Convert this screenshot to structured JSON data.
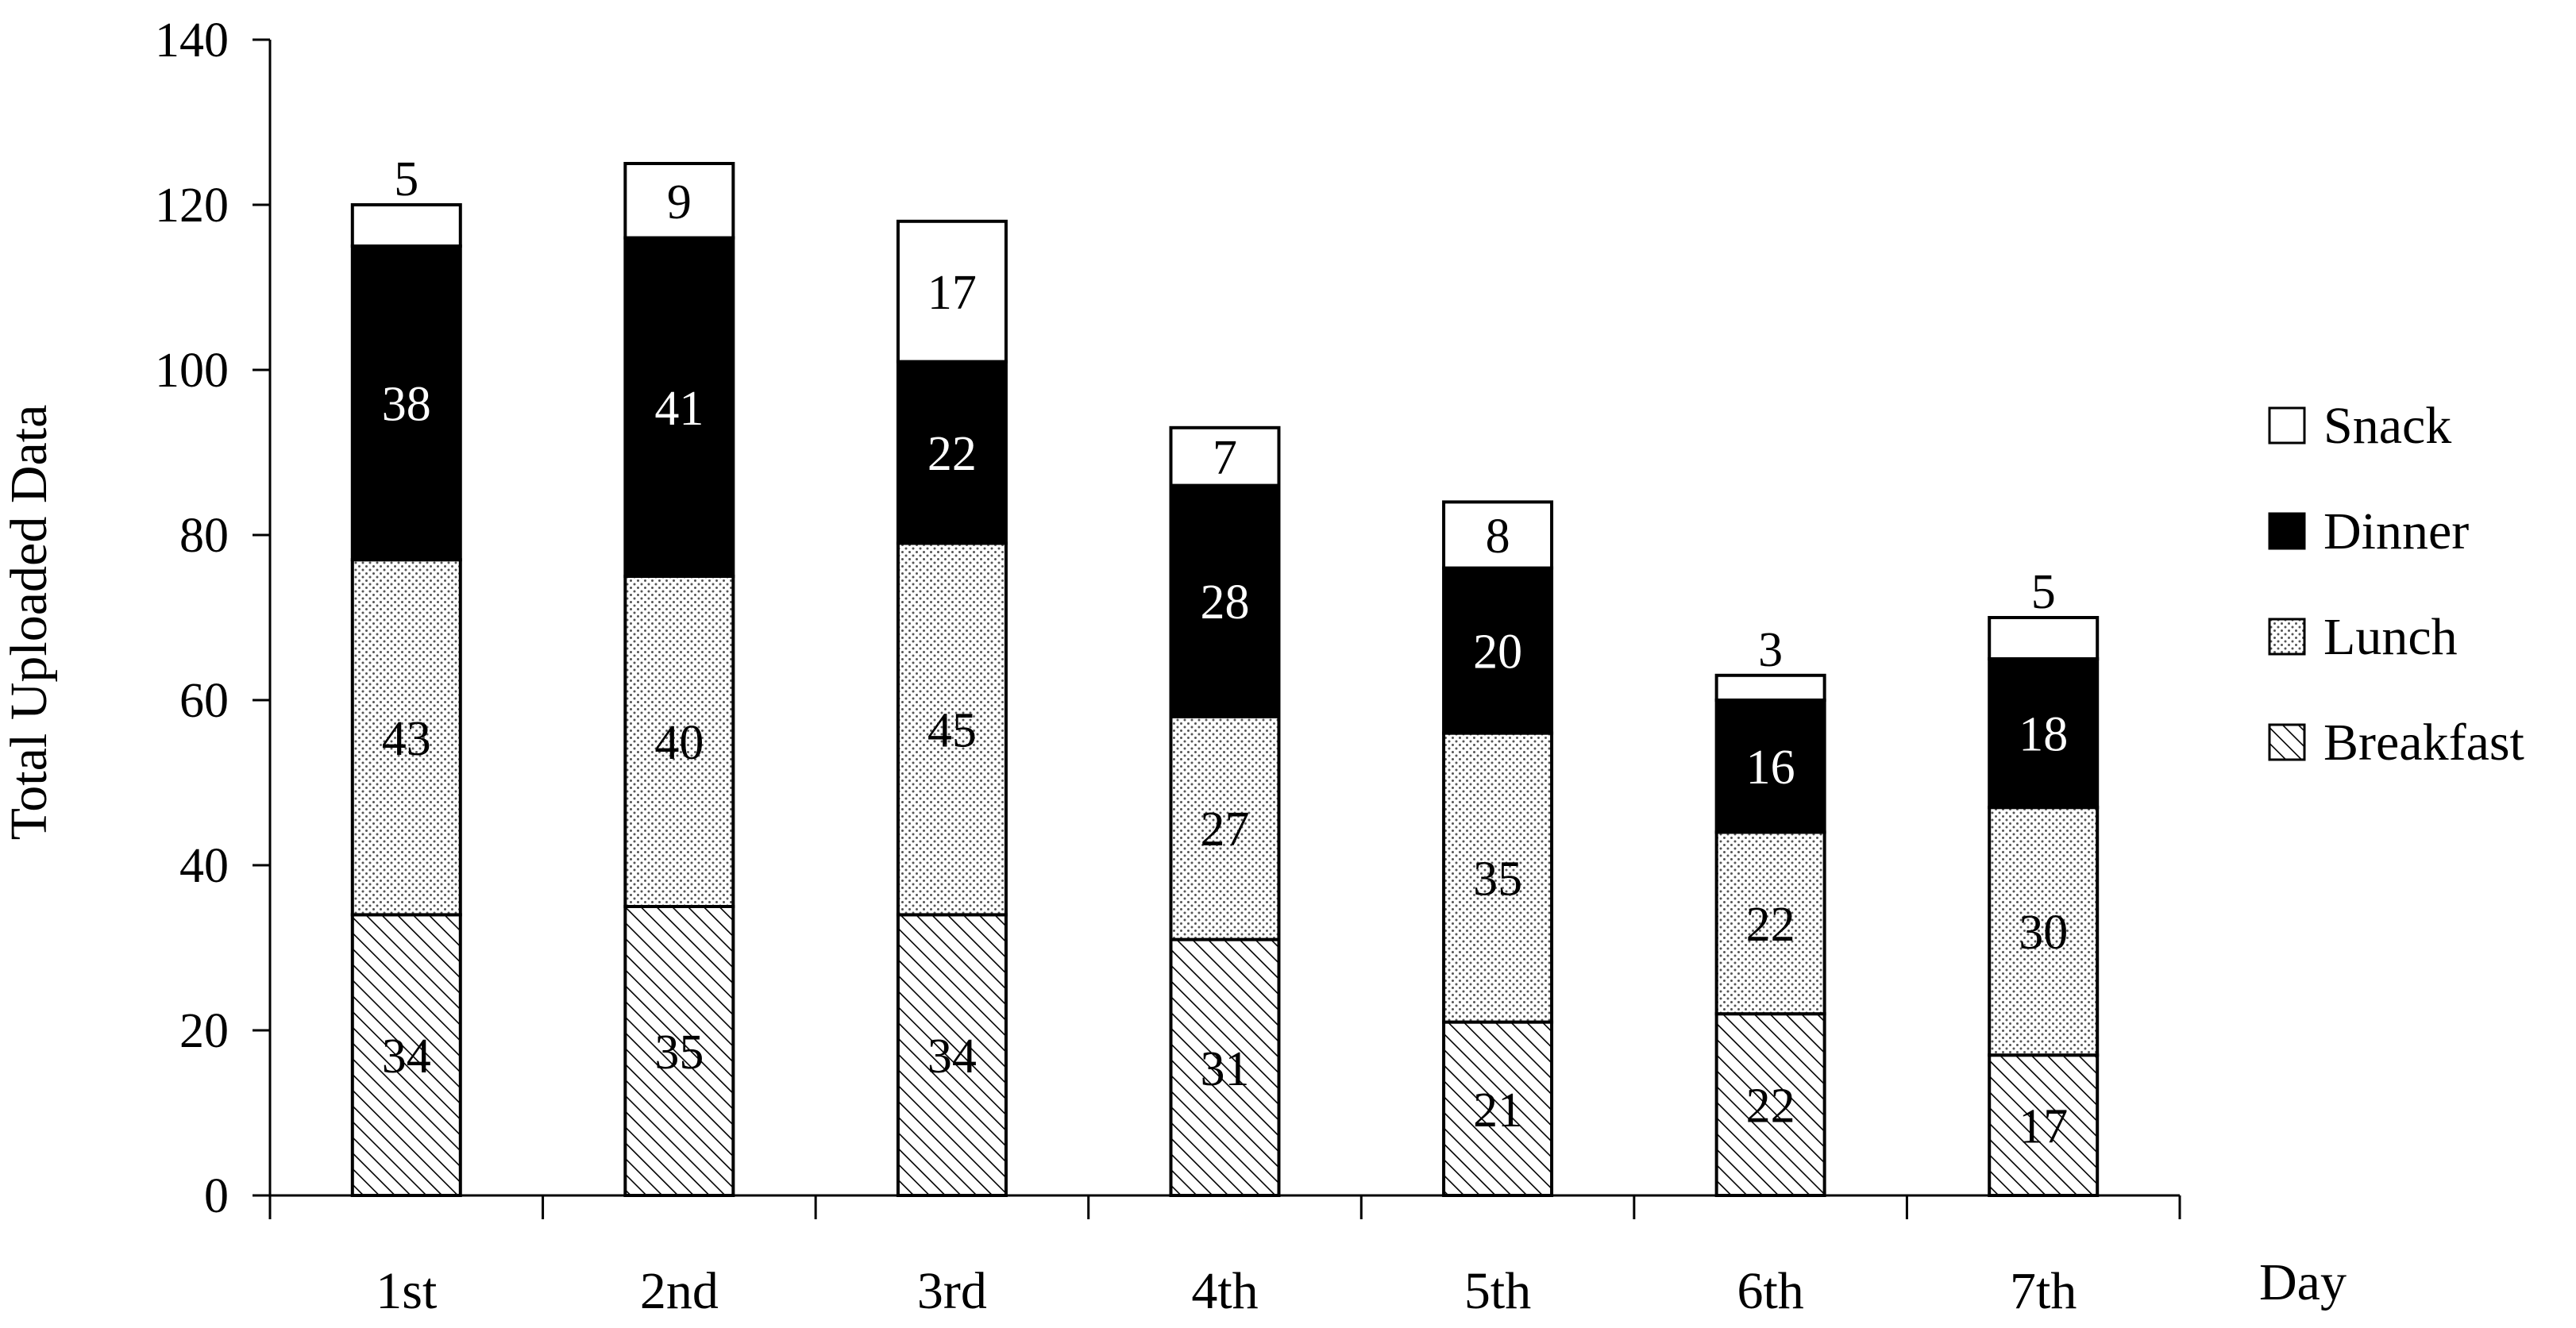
{
  "chart_data": {
    "type": "bar",
    "stacked": true,
    "title": "",
    "xlabel": "Day",
    "ylabel": "Total Uploaded Data",
    "ylim": [
      0,
      140
    ],
    "yticks": [
      0,
      20,
      40,
      60,
      80,
      100,
      120,
      140
    ],
    "grid": false,
    "legend_position": "right",
    "categories": [
      "1st",
      "2nd",
      "3rd",
      "4th",
      "5th",
      "6th",
      "7th"
    ],
    "series": [
      {
        "name": "Breakfast",
        "values": [
          34,
          35,
          34,
          31,
          21,
          22,
          17
        ],
        "pattern": "diagonal-hatch",
        "label_color": "#000000"
      },
      {
        "name": "Lunch",
        "values": [
          43,
          40,
          45,
          27,
          35,
          22,
          30
        ],
        "pattern": "dots",
        "label_color": "#000000"
      },
      {
        "name": "Dinner",
        "values": [
          38,
          41,
          22,
          28,
          20,
          16,
          18
        ],
        "pattern": "solid",
        "fill": "#000000",
        "label_color": "#ffffff"
      },
      {
        "name": "Snack",
        "values": [
          5,
          9,
          17,
          7,
          8,
          3,
          5
        ],
        "pattern": "solid",
        "fill": "#ffffff",
        "label_color": "#000000"
      }
    ]
  }
}
